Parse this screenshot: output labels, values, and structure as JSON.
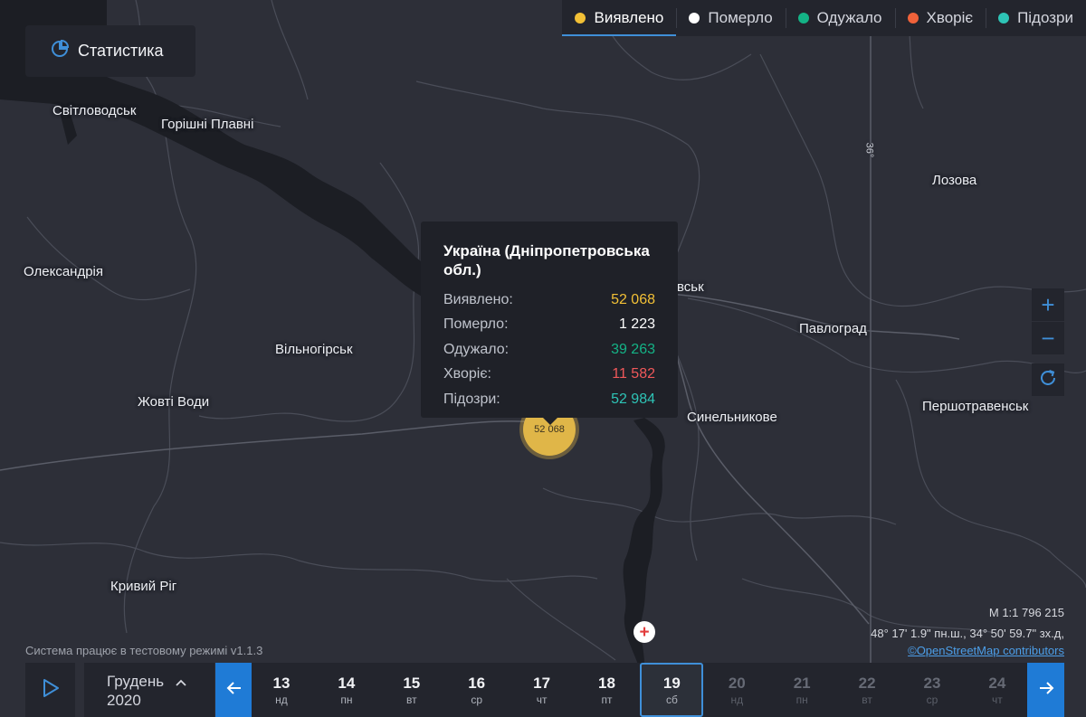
{
  "stats_button": {
    "label": "Статистика",
    "icon": "pie-chart-icon"
  },
  "legend": {
    "tabs": [
      {
        "label": "Виявлено",
        "color": "#f2c036",
        "active": true
      },
      {
        "label": "Померло",
        "color": "#ffffff",
        "active": false
      },
      {
        "label": "Одужало",
        "color": "#14b386",
        "active": false
      },
      {
        "label": "Хворіє",
        "color": "#f0623a",
        "active": false
      },
      {
        "label": "Підозри",
        "color": "#2ec4b6",
        "active": false
      }
    ]
  },
  "map": {
    "cities": [
      "Світловодськ",
      "Горішні Плавні",
      "Лозова",
      "Олександрія",
      "вськ",
      "Павлоград",
      "Вільногірськ",
      "Жовті Води",
      "Синельникове",
      "Першотравенськ",
      "Кривий Ріг"
    ],
    "road_label": "36°",
    "cluster_value": "52 068"
  },
  "tooltip": {
    "title": "Україна (Дніпропетровська обл.)",
    "rows": [
      {
        "label": "Виявлено:",
        "value": "52 068",
        "color": "#f2c036"
      },
      {
        "label": "Померло:",
        "value": "1 223",
        "color": "#ffffff"
      },
      {
        "label": "Одужало:",
        "value": "39 263",
        "color": "#14b386"
      },
      {
        "label": "Хворіє:",
        "value": "11 582",
        "color": "#f0585a"
      },
      {
        "label": "Підозри:",
        "value": "52 984",
        "color": "#2ec4b6"
      }
    ]
  },
  "controls": {
    "zoom_in": "+",
    "zoom_out": "−",
    "refresh_icon": "refresh-icon"
  },
  "footer": {
    "scale": "М 1:1 796 215",
    "coords": "48° 17' 1.9\" пн.ш., 34° 50' 59.7\" зх.д,",
    "osm": "©OpenStreetMap contributors",
    "test_mode": "Система працює в тестовому режимі v1.1.3"
  },
  "timeline": {
    "month": "Грудень",
    "year": "2020",
    "days": [
      {
        "n": "13",
        "w": "нд",
        "state": "past"
      },
      {
        "n": "14",
        "w": "пн",
        "state": "past"
      },
      {
        "n": "15",
        "w": "вт",
        "state": "past"
      },
      {
        "n": "16",
        "w": "ср",
        "state": "past"
      },
      {
        "n": "17",
        "w": "чт",
        "state": "past"
      },
      {
        "n": "18",
        "w": "пт",
        "state": "past"
      },
      {
        "n": "19",
        "w": "сб",
        "state": "selected"
      },
      {
        "n": "20",
        "w": "нд",
        "state": "future"
      },
      {
        "n": "21",
        "w": "пн",
        "state": "future"
      },
      {
        "n": "22",
        "w": "вт",
        "state": "future"
      },
      {
        "n": "23",
        "w": "ср",
        "state": "future"
      },
      {
        "n": "24",
        "w": "чт",
        "state": "future"
      }
    ]
  }
}
